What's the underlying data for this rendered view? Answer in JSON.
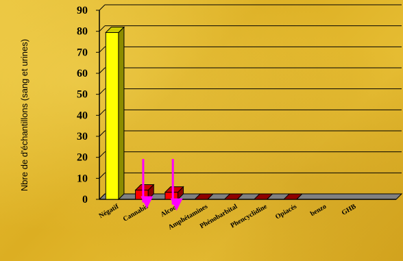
{
  "chart_data": {
    "type": "bar",
    "title": "",
    "xlabel": "",
    "ylabel": "Nbre de d'échantillons (sang et urines)",
    "categories": [
      "Négatif",
      "Cannabis",
      "Alcool",
      "Amphétamines",
      "Phénobarbital",
      "Phencyclidine",
      "Opiacés",
      "benzo",
      "GHB",
      ""
    ],
    "values": [
      82,
      7,
      6,
      0.5,
      0.5,
      0.5,
      0.5,
      0,
      0,
      0
    ],
    "colors": [
      "#ffff00",
      "#ff0000",
      "#ff0000",
      "#b20000",
      "#b20000",
      "#b20000",
      "#b20000",
      "#b20000",
      "#b20000",
      "#b20000"
    ],
    "ylim": [
      0,
      90
    ],
    "yticks": [
      0,
      10,
      20,
      30,
      40,
      50,
      60,
      70,
      80,
      90
    ],
    "grid": true,
    "style": "3d",
    "annotations": [
      {
        "type": "arrow",
        "category": "Cannabis",
        "color": "#ff00ff"
      },
      {
        "type": "arrow",
        "category": "Alcool",
        "color": "#ff00ff"
      }
    ]
  }
}
